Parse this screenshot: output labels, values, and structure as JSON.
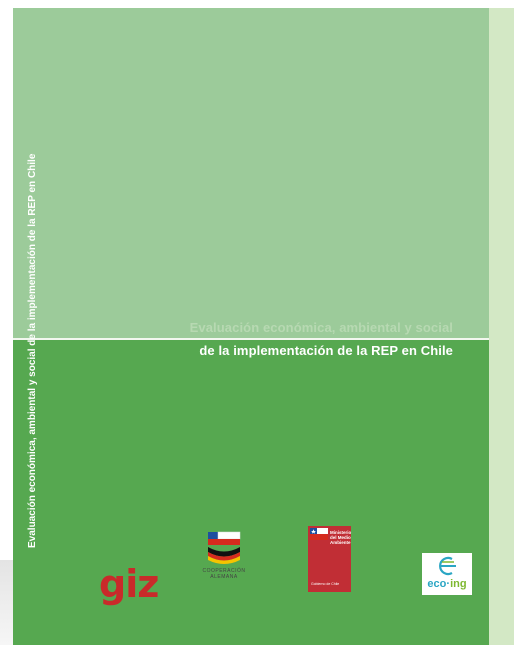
{
  "cover": {
    "title_line1": "Evaluación económica, ambiental y social",
    "title_line2": "de la implementación de la REP en Chile",
    "spine_text": "Evaluación económica, ambiental y social de la implementación de la REP en Chile"
  },
  "logos": {
    "giz": "giz",
    "cooperacion": "COOPERACIÓN ALEMANA",
    "ministerio": "Ministerio del Medio Ambiente",
    "ministerio_sub": "Gobierno de Chile",
    "eco_prefix": "eco",
    "eco_suffix": "ing"
  },
  "colors": {
    "top_green": "#9ccb9a",
    "bottom_green": "#56a850",
    "spine_green": "#d3e8c5",
    "giz_red": "#c92a2a",
    "ministry_red": "#c12e35"
  }
}
